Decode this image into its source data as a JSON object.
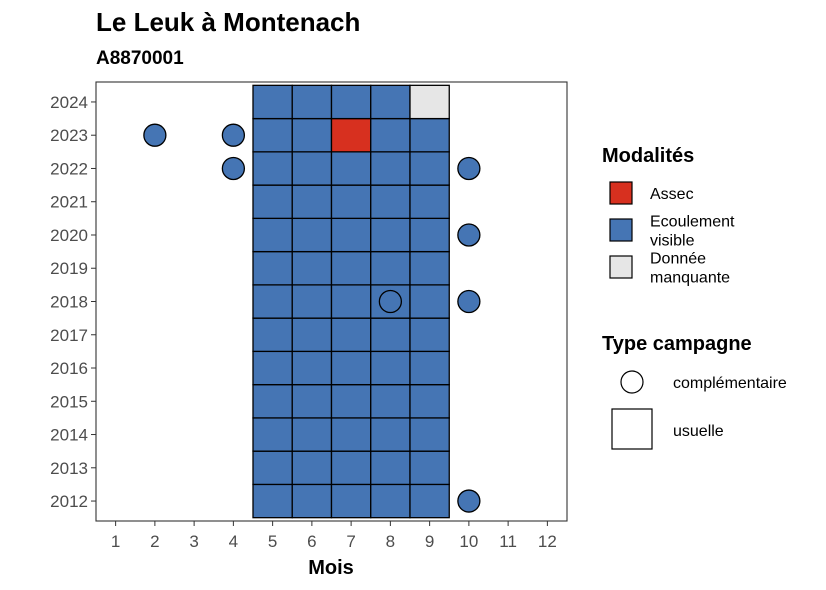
{
  "chart_data": {
    "type": "heatmap",
    "title": "Le Leuk à Montenach",
    "subtitle": "A8870001",
    "xlabel": "Mois",
    "ylabel": "",
    "x_ticks": [
      1,
      2,
      3,
      4,
      5,
      6,
      7,
      8,
      9,
      10,
      11,
      12
    ],
    "y_ticks": [
      2012,
      2013,
      2014,
      2015,
      2016,
      2017,
      2018,
      2019,
      2020,
      2021,
      2022,
      2023,
      2024
    ],
    "xlim": [
      0.5,
      12.5
    ],
    "ylim": [
      2011.4,
      2024.6
    ],
    "grid": false,
    "legend_position": "right",
    "colors": {
      "assec": "#d7301f",
      "ecoulement": "#4575b4",
      "manquante": "#e6e6e6",
      "border": "#000000"
    },
    "legend_modalites": {
      "title": "Modalités",
      "items": [
        {
          "key": "assec",
          "label_lines": [
            "Assec"
          ]
        },
        {
          "key": "ecoulement",
          "label_lines": [
            "Ecoulement",
            "visible"
          ]
        },
        {
          "key": "manquante",
          "label_lines": [
            "Donnée",
            "manquante"
          ]
        }
      ]
    },
    "legend_type": {
      "title": "Type campagne",
      "items": [
        {
          "shape": "circle",
          "label": "complémentaire"
        },
        {
          "shape": "square",
          "label": "usuelle"
        }
      ]
    },
    "usuelle": [
      {
        "year": 2012,
        "values": {
          "5": "ecoulement",
          "6": "ecoulement",
          "7": "ecoulement",
          "8": "ecoulement",
          "9": "ecoulement"
        }
      },
      {
        "year": 2013,
        "values": {
          "5": "ecoulement",
          "6": "ecoulement",
          "7": "ecoulement",
          "8": "ecoulement",
          "9": "ecoulement"
        }
      },
      {
        "year": 2014,
        "values": {
          "5": "ecoulement",
          "6": "ecoulement",
          "7": "ecoulement",
          "8": "ecoulement",
          "9": "ecoulement"
        }
      },
      {
        "year": 2015,
        "values": {
          "5": "ecoulement",
          "6": "ecoulement",
          "7": "ecoulement",
          "8": "ecoulement",
          "9": "ecoulement"
        }
      },
      {
        "year": 2016,
        "values": {
          "5": "ecoulement",
          "6": "ecoulement",
          "7": "ecoulement",
          "8": "ecoulement",
          "9": "ecoulement"
        }
      },
      {
        "year": 2017,
        "values": {
          "5": "ecoulement",
          "6": "ecoulement",
          "7": "ecoulement",
          "8": "ecoulement",
          "9": "ecoulement"
        }
      },
      {
        "year": 2018,
        "values": {
          "5": "ecoulement",
          "6": "ecoulement",
          "7": "ecoulement",
          "8": "ecoulement",
          "9": "ecoulement"
        }
      },
      {
        "year": 2019,
        "values": {
          "5": "ecoulement",
          "6": "ecoulement",
          "7": "ecoulement",
          "8": "ecoulement",
          "9": "ecoulement"
        }
      },
      {
        "year": 2020,
        "values": {
          "5": "ecoulement",
          "6": "ecoulement",
          "7": "ecoulement",
          "8": "ecoulement",
          "9": "ecoulement"
        }
      },
      {
        "year": 2021,
        "values": {
          "5": "ecoulement",
          "6": "ecoulement",
          "7": "ecoulement",
          "8": "ecoulement",
          "9": "ecoulement"
        }
      },
      {
        "year": 2022,
        "values": {
          "5": "ecoulement",
          "6": "ecoulement",
          "7": "ecoulement",
          "8": "ecoulement",
          "9": "ecoulement"
        }
      },
      {
        "year": 2023,
        "values": {
          "5": "ecoulement",
          "6": "ecoulement",
          "7": "assec",
          "8": "ecoulement",
          "9": "ecoulement"
        }
      },
      {
        "year": 2024,
        "values": {
          "5": "ecoulement",
          "6": "ecoulement",
          "7": "ecoulement",
          "8": "ecoulement",
          "9": "manquante"
        }
      }
    ],
    "complementaire": [
      {
        "year": 2012,
        "month": 10,
        "value": "ecoulement"
      },
      {
        "year": 2018,
        "month": 8,
        "value": "ecoulement"
      },
      {
        "year": 2018,
        "month": 10,
        "value": "ecoulement"
      },
      {
        "year": 2020,
        "month": 10,
        "value": "ecoulement"
      },
      {
        "year": 2022,
        "month": 4,
        "value": "ecoulement"
      },
      {
        "year": 2022,
        "month": 10,
        "value": "ecoulement"
      },
      {
        "year": 2023,
        "month": 2,
        "value": "ecoulement"
      },
      {
        "year": 2023,
        "month": 4,
        "value": "ecoulement"
      }
    ]
  }
}
